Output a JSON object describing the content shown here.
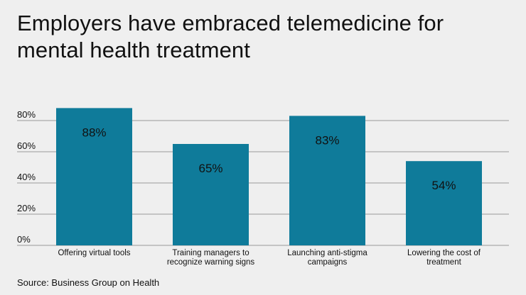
{
  "title": "Employers have embraced telemedicine for mental health treatment",
  "source": "Source: Business Group on Health",
  "colors": {
    "bar": "#0f7b9a",
    "grid": "#9a9a9a",
    "background": "#efefef",
    "text": "#111111"
  },
  "chart_data": {
    "type": "bar",
    "title": "Employers have embraced telemedicine for mental health treatment",
    "xlabel": "",
    "ylabel": "",
    "ylim": [
      0,
      100
    ],
    "yticks": [
      0,
      20,
      40,
      60,
      80
    ],
    "ytick_labels": [
      "0%",
      "20%",
      "40%",
      "60%",
      "80%"
    ],
    "grid": true,
    "categories": [
      [
        "Offering virtual tools"
      ],
      [
        "Training managers to",
        "recognize warning signs"
      ],
      [
        "Launching anti-stigma",
        "campaigns"
      ],
      [
        "Lowering the cost of",
        "treatment"
      ]
    ],
    "values": [
      88,
      65,
      83,
      54
    ],
    "data_labels": [
      "88%",
      "65%",
      "83%",
      "54%"
    ]
  }
}
